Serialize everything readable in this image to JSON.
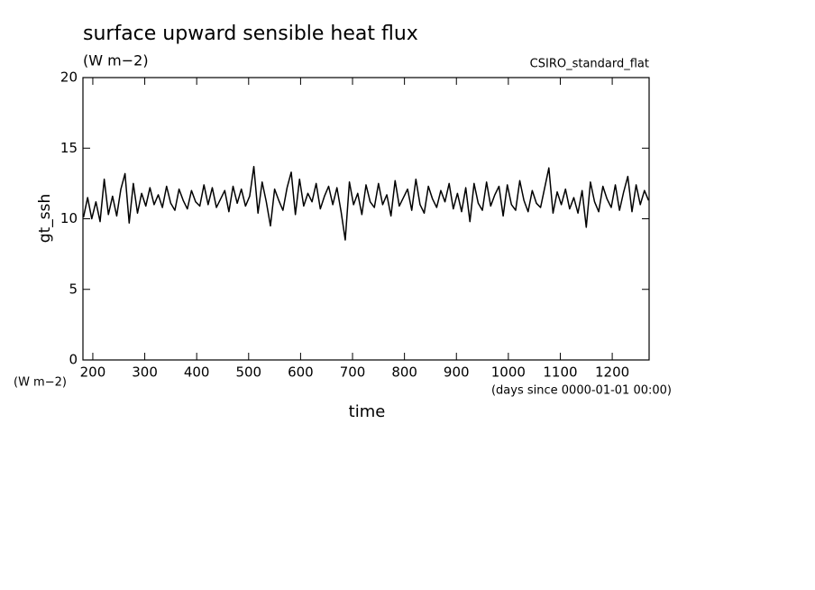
{
  "chart_data": {
    "type": "line",
    "title": "surface upward sensible heat flux",
    "subtitle": "(W m−2)",
    "annotation": "CSIRO_standard_flat",
    "y_label": "gt_ssh",
    "y_units": "(W m−2)",
    "x_label": "time",
    "x_units": "(days since 0000-01-01 00:00)",
    "xlim": [
      181,
      1271
    ],
    "ylim": [
      0,
      20
    ],
    "xticks": [
      200,
      300,
      400,
      500,
      600,
      700,
      800,
      900,
      1000,
      1100,
      1200
    ],
    "yticks": [
      0,
      5,
      10,
      15,
      20
    ],
    "x": [
      182,
      190,
      198,
      206,
      214,
      222,
      230,
      238,
      246,
      254,
      262,
      270,
      278,
      286,
      294,
      302,
      310,
      318,
      326,
      334,
      342,
      350,
      358,
      366,
      374,
      382,
      390,
      398,
      406,
      414,
      422,
      430,
      438,
      446,
      454,
      462,
      470,
      478,
      486,
      494,
      502,
      510,
      518,
      526,
      534,
      542,
      550,
      558,
      566,
      574,
      582,
      590,
      598,
      606,
      614,
      622,
      630,
      638,
      646,
      654,
      662,
      670,
      678,
      686,
      694,
      702,
      710,
      718,
      726,
      734,
      742,
      750,
      758,
      766,
      774,
      782,
      790,
      798,
      806,
      814,
      822,
      830,
      838,
      846,
      854,
      862,
      870,
      878,
      886,
      894,
      902,
      910,
      918,
      926,
      934,
      942,
      950,
      958,
      966,
      974,
      982,
      990,
      998,
      1006,
      1014,
      1022,
      1030,
      1038,
      1046,
      1054,
      1062,
      1070,
      1078,
      1086,
      1094,
      1102,
      1110,
      1118,
      1126,
      1134,
      1142,
      1150,
      1158,
      1166,
      1174,
      1182,
      1190,
      1198,
      1206,
      1214,
      1222,
      1230,
      1238,
      1246,
      1254,
      1262,
      1270
    ],
    "series": [
      {
        "name": "gt_ssh",
        "color": "#000000",
        "values": [
          10.1,
          11.5,
          10.0,
          11.2,
          9.8,
          12.8,
          10.3,
          11.6,
          10.2,
          12.1,
          13.2,
          9.7,
          12.5,
          10.4,
          11.8,
          10.9,
          12.2,
          11.0,
          11.7,
          10.8,
          12.3,
          11.1,
          10.6,
          12.1,
          11.3,
          10.7,
          12.0,
          11.2,
          10.9,
          12.4,
          11.0,
          12.2,
          10.8,
          11.4,
          12.0,
          10.5,
          12.3,
          11.1,
          12.1,
          10.9,
          11.6,
          13.7,
          10.4,
          12.6,
          11.2,
          9.5,
          12.1,
          11.3,
          10.6,
          12.2,
          13.3,
          10.3,
          12.8,
          10.9,
          11.8,
          11.2,
          12.5,
          10.7,
          11.6,
          12.3,
          11.0,
          12.2,
          10.5,
          8.5,
          12.6,
          11.0,
          11.8,
          10.3,
          12.4,
          11.2,
          10.8,
          12.5,
          11.0,
          11.7,
          10.2,
          12.7,
          10.9,
          11.5,
          12.1,
          10.6,
          12.8,
          11.0,
          10.4,
          12.3,
          11.4,
          10.8,
          12.0,
          11.2,
          12.5,
          10.7,
          11.8,
          10.5,
          12.2,
          9.8,
          12.5,
          11.1,
          10.6,
          12.6,
          10.9,
          11.7,
          12.3,
          10.2,
          12.4,
          11.0,
          10.6,
          12.7,
          11.3,
          10.5,
          12.0,
          11.1,
          10.8,
          12.2,
          13.6,
          10.4,
          11.9,
          11.0,
          12.1,
          10.7,
          11.5,
          10.4,
          12.0,
          9.4,
          12.6,
          11.2,
          10.5,
          12.3,
          11.4,
          10.8,
          12.4,
          10.6,
          11.9,
          13.0,
          10.5,
          12.4,
          11.0,
          12.0,
          11.3
        ]
      }
    ]
  }
}
